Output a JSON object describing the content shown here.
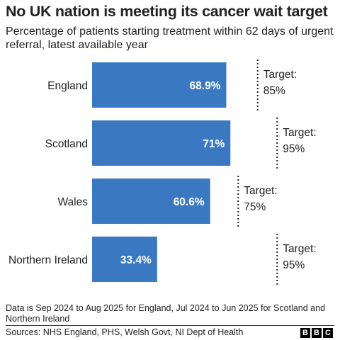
{
  "title": "No UK nation is meeting its cancer wait target",
  "subtitle": "Percentage of patients starting treatment within 62 days of urgent referral, latest available year",
  "footnote": "Data is Sep 2024 to Aug 2025 for England, Jul 2024 to Jun 2025 for Scotland and Northern Ireland",
  "sources": "Sources: NHS England, PHS, Welsh Govt, NI Dept of Health",
  "logo_letters": [
    "B",
    "B",
    "C"
  ],
  "chart_data": {
    "type": "bar",
    "orientation": "horizontal",
    "title": "No UK nation is meeting its cancer wait target",
    "subtitle": "Percentage of patients starting treatment within 62 days of urgent referral, latest available year",
    "categories": [
      "England",
      "Scotland",
      "Wales",
      "Northern Ireland"
    ],
    "values": [
      68.9,
      71,
      60.6,
      33.4
    ],
    "value_labels": [
      "68.9%",
      "71%",
      "60.6%",
      "33.4%"
    ],
    "targets": [
      85,
      95,
      75,
      95
    ],
    "target_label": "Target:",
    "target_value_labels": [
      "85%",
      "95%",
      "75%",
      "95%"
    ],
    "xlim": [
      0,
      100
    ],
    "grid": false,
    "legend": "none",
    "bar_color": "#3a78c2",
    "target_line_color": "#222222"
  }
}
